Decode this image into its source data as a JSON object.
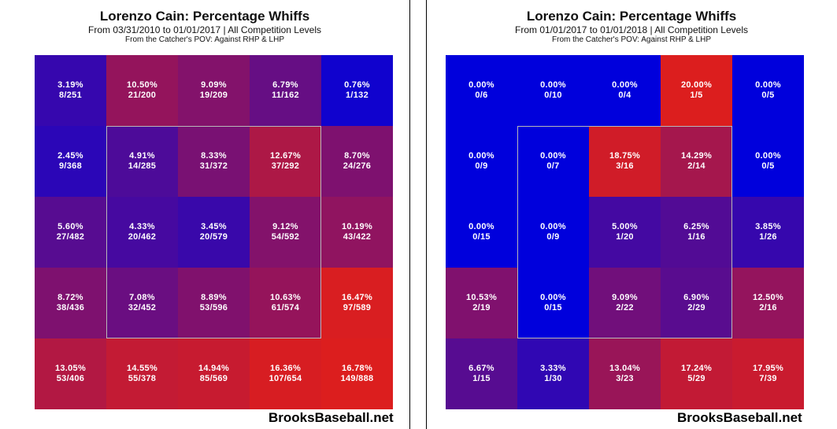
{
  "brand": "BrooksBaseball.net",
  "colors": {
    "low": "#0000dc",
    "high": "#dc1e1e"
  },
  "chart_data": [
    {
      "type": "heatmap",
      "title": "Lorenzo Cain: Percentage Whiffs",
      "subtitle": "From 03/31/2010 to 01/01/2017 | All Competition Levels",
      "pov": "From the Catcher's POV:  Against RHP & LHP",
      "rows": 5,
      "cols": 5,
      "cells": [
        [
          {
            "pct": "3.19%",
            "frac": "8/251",
            "value": 3.19
          },
          {
            "pct": "10.50%",
            "frac": "21/200",
            "value": 10.5
          },
          {
            "pct": "9.09%",
            "frac": "19/209",
            "value": 9.09
          },
          {
            "pct": "6.79%",
            "frac": "11/162",
            "value": 6.79
          },
          {
            "pct": "0.76%",
            "frac": "1/132",
            "value": 0.76
          }
        ],
        [
          {
            "pct": "2.45%",
            "frac": "9/368",
            "value": 2.45
          },
          {
            "pct": "4.91%",
            "frac": "14/285",
            "value": 4.91
          },
          {
            "pct": "8.33%",
            "frac": "31/372",
            "value": 8.33
          },
          {
            "pct": "12.67%",
            "frac": "37/292",
            "value": 12.67
          },
          {
            "pct": "8.70%",
            "frac": "24/276",
            "value": 8.7
          }
        ],
        [
          {
            "pct": "5.60%",
            "frac": "27/482",
            "value": 5.6
          },
          {
            "pct": "4.33%",
            "frac": "20/462",
            "value": 4.33
          },
          {
            "pct": "3.45%",
            "frac": "20/579",
            "value": 3.45
          },
          {
            "pct": "9.12%",
            "frac": "54/592",
            "value": 9.12
          },
          {
            "pct": "10.19%",
            "frac": "43/422",
            "value": 10.19
          }
        ],
        [
          {
            "pct": "8.72%",
            "frac": "38/436",
            "value": 8.72
          },
          {
            "pct": "7.08%",
            "frac": "32/452",
            "value": 7.08
          },
          {
            "pct": "8.89%",
            "frac": "53/596",
            "value": 8.89
          },
          {
            "pct": "10.63%",
            "frac": "61/574",
            "value": 10.63
          },
          {
            "pct": "16.47%",
            "frac": "97/589",
            "value": 16.47
          }
        ],
        [
          {
            "pct": "13.05%",
            "frac": "53/406",
            "value": 13.05
          },
          {
            "pct": "14.55%",
            "frac": "55/378",
            "value": 14.55
          },
          {
            "pct": "14.94%",
            "frac": "85/569",
            "value": 14.94
          },
          {
            "pct": "16.36%",
            "frac": "107/654",
            "value": 16.36
          },
          {
            "pct": "16.78%",
            "frac": "149/888",
            "value": 16.78
          }
        ]
      ]
    },
    {
      "type": "heatmap",
      "title": "Lorenzo Cain: Percentage Whiffs",
      "subtitle": "From 01/01/2017 to 01/01/2018 | All Competition Levels",
      "pov": "From the Catcher's POV:  Against RHP & LHP",
      "rows": 5,
      "cols": 5,
      "cells": [
        [
          {
            "pct": "0.00%",
            "frac": "0/6",
            "value": 0.0
          },
          {
            "pct": "0.00%",
            "frac": "0/10",
            "value": 0.0
          },
          {
            "pct": "0.00%",
            "frac": "0/4",
            "value": 0.0
          },
          {
            "pct": "20.00%",
            "frac": "1/5",
            "value": 20.0
          },
          {
            "pct": "0.00%",
            "frac": "0/5",
            "value": 0.0
          }
        ],
        [
          {
            "pct": "0.00%",
            "frac": "0/9",
            "value": 0.0
          },
          {
            "pct": "0.00%",
            "frac": "0/7",
            "value": 0.0
          },
          {
            "pct": "18.75%",
            "frac": "3/16",
            "value": 18.75
          },
          {
            "pct": "14.29%",
            "frac": "2/14",
            "value": 14.29
          },
          {
            "pct": "0.00%",
            "frac": "0/5",
            "value": 0.0
          }
        ],
        [
          {
            "pct": "0.00%",
            "frac": "0/15",
            "value": 0.0
          },
          {
            "pct": "0.00%",
            "frac": "0/9",
            "value": 0.0
          },
          {
            "pct": "5.00%",
            "frac": "1/20",
            "value": 5.0
          },
          {
            "pct": "6.25%",
            "frac": "1/16",
            "value": 6.25
          },
          {
            "pct": "3.85%",
            "frac": "1/26",
            "value": 3.85
          }
        ],
        [
          {
            "pct": "10.53%",
            "frac": "2/19",
            "value": 10.53
          },
          {
            "pct": "0.00%",
            "frac": "0/15",
            "value": 0.0
          },
          {
            "pct": "9.09%",
            "frac": "2/22",
            "value": 9.09
          },
          {
            "pct": "6.90%",
            "frac": "2/29",
            "value": 6.9
          },
          {
            "pct": "12.50%",
            "frac": "2/16",
            "value": 12.5
          }
        ],
        [
          {
            "pct": "6.67%",
            "frac": "1/15",
            "value": 6.67
          },
          {
            "pct": "3.33%",
            "frac": "1/30",
            "value": 3.33
          },
          {
            "pct": "13.04%",
            "frac": "3/23",
            "value": 13.04
          },
          {
            "pct": "17.24%",
            "frac": "5/29",
            "value": 17.24
          },
          {
            "pct": "17.95%",
            "frac": "7/39",
            "value": 17.95
          }
        ]
      ]
    }
  ]
}
